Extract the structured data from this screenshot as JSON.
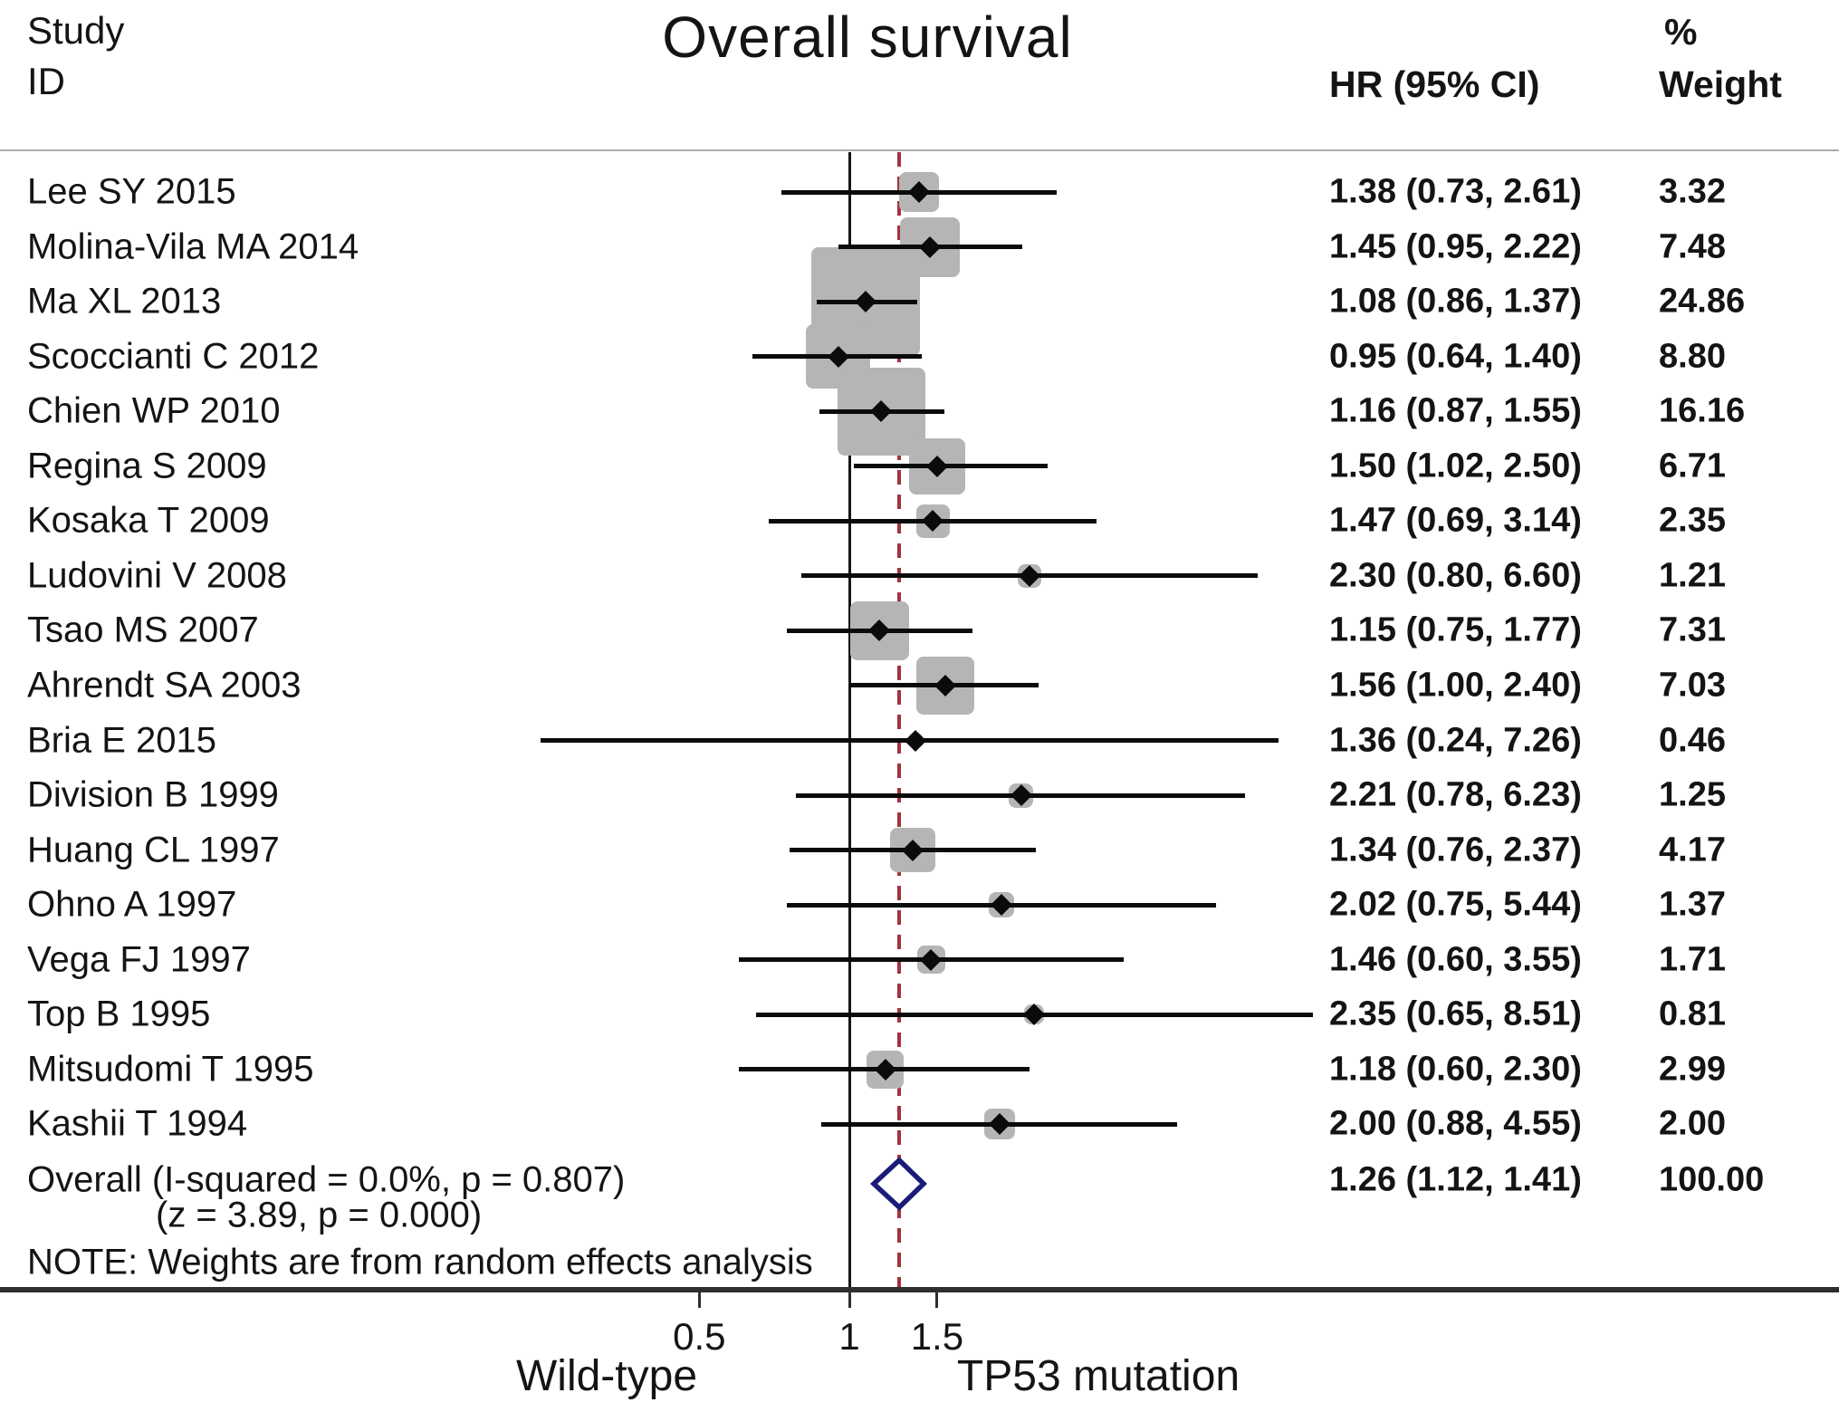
{
  "header": {
    "study_col_line1": "Study",
    "study_col_line2": "ID",
    "hr_col": "HR (95% CI)",
    "weight_col_line1": "%",
    "weight_col_line2": "Weight"
  },
  "chart_data": {
    "type": "forest",
    "title": "Overall survival",
    "x_scale": "log",
    "x_ticks": [
      0.5,
      1,
      1.5
    ],
    "x_tick_labels": [
      "0.5",
      "1",
      "1.5"
    ],
    "ref_line_value": 1,
    "overall_line_value": 1.26,
    "axis_left_label": "Wild-type",
    "axis_right_label": "TP53 mutation",
    "columns": [
      "Study ID",
      "HR (95% CI)",
      "% Weight"
    ],
    "studies": [
      {
        "id": "Lee SY 2015",
        "hr": 1.38,
        "lo": 0.73,
        "hi": 2.61,
        "hr_text": "1.38 (0.73, 2.61)",
        "weight": 3.32,
        "weight_text": "3.32"
      },
      {
        "id": "Molina-Vila MA 2014",
        "hr": 1.45,
        "lo": 0.95,
        "hi": 2.22,
        "hr_text": "1.45 (0.95, 2.22)",
        "weight": 7.48,
        "weight_text": "7.48"
      },
      {
        "id": "Ma XL 2013",
        "hr": 1.08,
        "lo": 0.86,
        "hi": 1.37,
        "hr_text": "1.08 (0.86, 1.37)",
        "weight": 24.86,
        "weight_text": "24.86"
      },
      {
        "id": "Scoccianti C 2012",
        "hr": 0.95,
        "lo": 0.64,
        "hi": 1.4,
        "hr_text": "0.95 (0.64, 1.40)",
        "weight": 8.8,
        "weight_text": "8.80"
      },
      {
        "id": "Chien WP 2010",
        "hr": 1.16,
        "lo": 0.87,
        "hi": 1.55,
        "hr_text": "1.16 (0.87, 1.55)",
        "weight": 16.16,
        "weight_text": "16.16"
      },
      {
        "id": "Regina S 2009",
        "hr": 1.5,
        "lo": 1.02,
        "hi": 2.5,
        "hr_text": "1.50 (1.02, 2.50)",
        "weight": 6.71,
        "weight_text": "6.71"
      },
      {
        "id": "Kosaka T 2009",
        "hr": 1.47,
        "lo": 0.69,
        "hi": 3.14,
        "hr_text": "1.47 (0.69, 3.14)",
        "weight": 2.35,
        "weight_text": "2.35"
      },
      {
        "id": "Ludovini V 2008",
        "hr": 2.3,
        "lo": 0.8,
        "hi": 6.6,
        "hr_text": "2.30 (0.80, 6.60)",
        "weight": 1.21,
        "weight_text": "1.21"
      },
      {
        "id": "Tsao MS 2007",
        "hr": 1.15,
        "lo": 0.75,
        "hi": 1.77,
        "hr_text": "1.15 (0.75, 1.77)",
        "weight": 7.31,
        "weight_text": "7.31"
      },
      {
        "id": "Ahrendt SA 2003",
        "hr": 1.56,
        "lo": 1.0,
        "hi": 2.4,
        "hr_text": "1.56 (1.00, 2.40)",
        "weight": 7.03,
        "weight_text": "7.03"
      },
      {
        "id": "Bria E 2015",
        "hr": 1.36,
        "lo": 0.24,
        "hi": 7.26,
        "hr_text": "1.36 (0.24, 7.26)",
        "weight": 0.46,
        "weight_text": "0.46"
      },
      {
        "id": "Division B 1999",
        "hr": 2.21,
        "lo": 0.78,
        "hi": 6.23,
        "hr_text": "2.21 (0.78, 6.23)",
        "weight": 1.25,
        "weight_text": "1.25"
      },
      {
        "id": "Huang CL 1997",
        "hr": 1.34,
        "lo": 0.76,
        "hi": 2.37,
        "hr_text": "1.34 (0.76, 2.37)",
        "weight": 4.17,
        "weight_text": "4.17"
      },
      {
        "id": "Ohno A 1997",
        "hr": 2.02,
        "lo": 0.75,
        "hi": 5.44,
        "hr_text": "2.02 (0.75, 5.44)",
        "weight": 1.37,
        "weight_text": "1.37"
      },
      {
        "id": "Vega FJ 1997",
        "hr": 1.46,
        "lo": 0.6,
        "hi": 3.55,
        "hr_text": "1.46 (0.60, 3.55)",
        "weight": 1.71,
        "weight_text": "1.71"
      },
      {
        "id": "Top B 1995",
        "hr": 2.35,
        "lo": 0.65,
        "hi": 8.51,
        "hr_text": "2.35 (0.65, 8.51)",
        "weight": 0.81,
        "weight_text": "0.81"
      },
      {
        "id": "Mitsudomi T 1995",
        "hr": 1.18,
        "lo": 0.6,
        "hi": 2.3,
        "hr_text": "1.18 (0.60, 2.30)",
        "weight": 2.99,
        "weight_text": "2.99"
      },
      {
        "id": "Kashii T 1994",
        "hr": 2.0,
        "lo": 0.88,
        "hi": 4.55,
        "hr_text": "2.00 (0.88, 4.55)",
        "weight": 2.0,
        "weight_text": "2.00"
      }
    ],
    "overall": {
      "label_line1": "Overall  (I-squared = 0.0%, p = 0.807)",
      "label_line2": "(z = 3.89, p = 0.000)",
      "hr": 1.26,
      "lo": 1.12,
      "hi": 1.41,
      "hr_text": "1.26 (1.12, 1.41)",
      "weight_text": "100.00"
    },
    "note": "NOTE: Weights are from random effects analysis"
  },
  "colors": {
    "text": "#141414",
    "weight_box": "#b5b5b5",
    "ci_line": "#0b0b0b",
    "marker": "#0b0b0b",
    "ref_line": "#151515",
    "overall_dash_line": "#a3323f",
    "diamond_stroke": "#1b1b78",
    "diamond_fill": "#ffffff",
    "axis_line": "#2e2e2e",
    "header_rule": "#ababab"
  }
}
